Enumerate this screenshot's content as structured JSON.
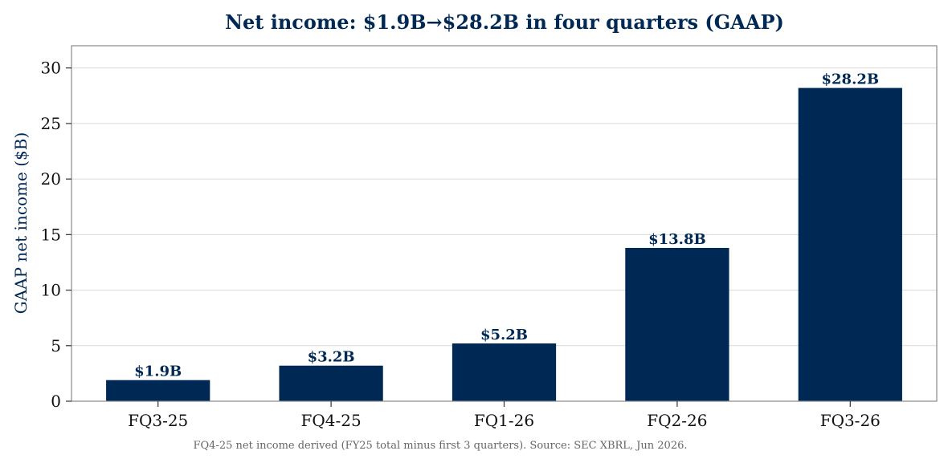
{
  "colors": {
    "bar": "#002855",
    "title": "#002855",
    "axis_label": "#002855",
    "grid": "#d9d9d9",
    "frame": "#888888",
    "footnote": "#666666"
  },
  "chart_data": {
    "type": "bar",
    "title": "Net income: $1.9B→$28.2B in four quarters (GAAP)",
    "xlabel": "",
    "ylabel": "GAAP net income ($B)",
    "categories": [
      "FQ3-25",
      "FQ4-25",
      "FQ1-26",
      "FQ2-26",
      "FQ3-26"
    ],
    "values": [
      1.9,
      3.2,
      5.2,
      13.8,
      28.2
    ],
    "data_labels": [
      "$1.9B",
      "$3.2B",
      "$5.2B",
      "$13.8B",
      "$28.2B"
    ],
    "ylim": [
      0,
      32
    ],
    "yticks": [
      0,
      5,
      10,
      15,
      20,
      25,
      30
    ],
    "grid": true,
    "footnote": "FQ4-25 net income derived (FY25 total minus first 3 quarters). Source: SEC XBRL, Jun 2026."
  }
}
